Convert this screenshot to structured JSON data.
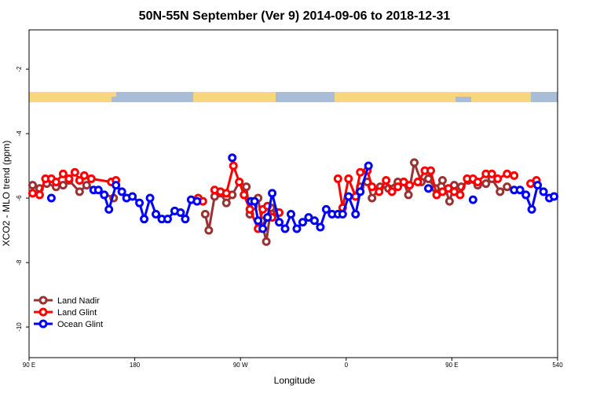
{
  "chart_data": {
    "type": "line",
    "title": "50N-55N September (Ver 9)   2014-09-06 to 2018-12-31",
    "x_label": "Longitude",
    "y_label": "XCO2 - MLO trend (ppm)",
    "xlim": [
      90,
      540
    ],
    "ylim": [
      -10.95,
      -0.78
    ],
    "xticks": [
      {
        "value": 90,
        "label": "90 E"
      },
      180,
      {
        "value": 270,
        "label": "90 W"
      },
      {
        "value": 360,
        "label": "0"
      },
      {
        "value": 450,
        "label": "90 E"
      },
      540
    ],
    "yticks": [
      -2,
      -4,
      -6,
      -8,
      -10
    ],
    "legend": "bottom-left",
    "series": [
      {
        "name": "Land Nadir",
        "color": "#993333",
        "x": [
          93,
          99,
          105,
          113,
          119,
          124,
          133,
          139,
          162,
          null,
          240,
          243,
          248,
          253,
          258,
          263,
          269,
          275,
          278,
          281,
          285,
          288,
          292,
          296,
          301,
          null,
          372,
          378,
          382,
          389,
          396,
          404,
          409,
          413,
          418,
          424,
          430,
          436,
          442,
          448,
          452,
          458,
          464,
          472,
          479,
          484,
          491,
          497
        ],
        "values": [
          -5.6,
          -5.7,
          -5.55,
          -5.65,
          -5.6,
          -5.45,
          -5.8,
          -5.6,
          -6.0,
          null,
          -6.5,
          -7.0,
          -5.95,
          -5.85,
          -6.15,
          -5.9,
          -5.5,
          -5.65,
          -6.5,
          -6.25,
          -6.0,
          -6.7,
          -7.35,
          -6.3,
          -6.45,
          null,
          -5.65,
          -5.5,
          -6.0,
          -5.65,
          -5.7,
          -5.5,
          -5.5,
          -5.9,
          -4.9,
          -5.5,
          -5.4,
          -5.7,
          -5.45,
          -6.1,
          -5.6,
          -5.65,
          -5.45,
          -5.6,
          -5.55,
          -5.4,
          -5.8,
          -5.65
        ]
      },
      {
        "name": "Land Glint",
        "color": "#ff0000",
        "x": [
          93,
          99,
          104,
          109,
          113,
          119,
          124,
          129,
          133,
          137,
          143,
          160,
          164,
          null,
          234,
          238,
          null,
          248,
          253,
          258,
          264,
          269,
          273,
          278,
          285,
          289,
          293,
          297,
          303,
          null,
          353,
          357,
          362,
          368,
          372,
          378,
          382,
          388,
          394,
          399,
          404,
          409,
          414,
          421,
          427,
          432,
          437,
          442,
          447,
          452,
          457,
          463,
          468,
          472,
          479,
          484,
          489,
          497,
          503,
          null,
          517,
          522
        ],
        "values": [
          -5.85,
          -5.9,
          -5.4,
          -5.4,
          -5.5,
          -5.25,
          -5.4,
          -5.2,
          -5.45,
          -5.3,
          -5.4,
          -5.5,
          -5.45,
          null,
          -6.0,
          -6.1,
          null,
          -5.75,
          -5.8,
          -5.85,
          -5.0,
          -5.5,
          -5.9,
          -6.35,
          -6.95,
          -6.35,
          -6.25,
          -6.6,
          -6.45,
          null,
          -5.4,
          -6.3,
          -5.4,
          -5.95,
          -5.2,
          -5.15,
          -5.65,
          -5.8,
          -5.45,
          -5.8,
          -5.65,
          -5.5,
          -5.6,
          -5.5,
          -5.15,
          -5.15,
          -5.9,
          -5.8,
          -5.7,
          -5.8,
          -5.9,
          -5.4,
          -5.4,
          -5.5,
          -5.25,
          -5.25,
          -5.4,
          -5.25,
          -5.3,
          null,
          -5.55,
          -5.45
        ]
      },
      {
        "name": "Ocean Glint",
        "color": "#0000ff",
        "x": [
          109,
          null,
          145,
          149,
          154,
          158,
          164,
          169,
          173,
          178,
          184,
          188,
          193,
          198,
          203,
          208,
          214,
          219,
          223,
          228,
          233,
          null,
          263,
          null,
          279,
          282,
          285,
          289,
          293,
          297,
          303,
          308,
          313,
          318,
          323,
          328,
          333,
          338,
          343,
          348,
          353,
          357,
          362,
          368,
          372,
          379,
          null,
          430,
          null,
          468,
          null,
          503,
          508,
          513,
          518,
          523,
          528,
          533,
          537
        ],
        "values": [
          -6.0,
          null,
          -5.75,
          -5.75,
          -5.9,
          -6.35,
          -5.6,
          -5.8,
          -6.0,
          -5.95,
          -6.15,
          -6.65,
          -6.0,
          -6.5,
          -6.65,
          -6.65,
          -6.4,
          -6.45,
          -6.65,
          -6.05,
          -6.1,
          null,
          -4.75,
          null,
          -6.1,
          -6.1,
          -6.7,
          -6.95,
          -6.6,
          -5.85,
          -6.75,
          -6.95,
          -6.5,
          -6.95,
          -6.75,
          -6.6,
          -6.7,
          -6.9,
          -6.35,
          -6.5,
          -6.5,
          -6.5,
          -5.95,
          -6.5,
          -5.8,
          -5.0,
          null,
          -5.7,
          null,
          -6.05,
          null,
          -5.75,
          -5.75,
          -5.9,
          -6.35,
          -5.6,
          -5.8,
          -6.0,
          -5.95
        ]
      }
    ]
  }
}
